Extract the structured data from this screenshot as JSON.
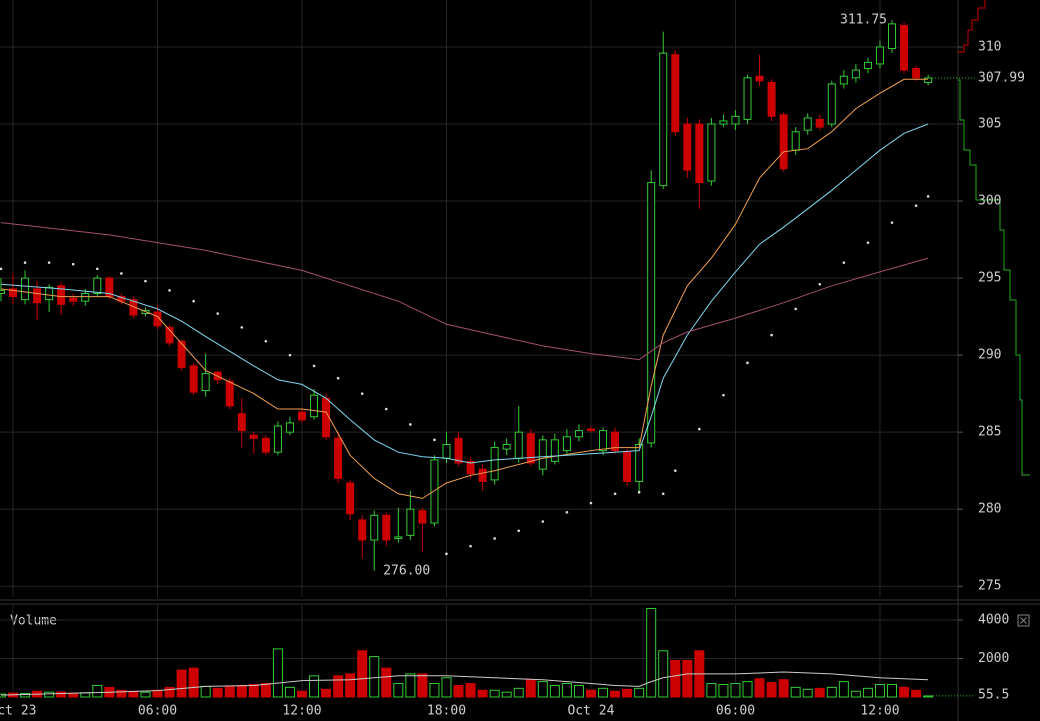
{
  "chart_data": [
    {
      "type": "candlestick",
      "x": [
        -0.5,
        0,
        0.5,
        1,
        1.5,
        2,
        2.5,
        3,
        3.5,
        4,
        4.5,
        5,
        5.5,
        6,
        6.5,
        7,
        7.5,
        8,
        8.5,
        9,
        9.5,
        10,
        10.5,
        11,
        11.5,
        12,
        12.5,
        13,
        13.5,
        14,
        14.5,
        15,
        15.5,
        16,
        16.5,
        17,
        17.5,
        18,
        18.5,
        19,
        19.5,
        20,
        20.5,
        21,
        21.5,
        22,
        22.5,
        23,
        23.5,
        24,
        24.5,
        25,
        25.5,
        26,
        26.5,
        27,
        27.5,
        28,
        28.5,
        29,
        29.5,
        30,
        30.5,
        31,
        31.5,
        32,
        32.5,
        33,
        33.5,
        34,
        34.5,
        35,
        35.5,
        36,
        36.5,
        37,
        37.5,
        38
      ],
      "open": [
        294.0,
        294.3,
        293.6,
        294.3,
        293.6,
        294.5,
        293.7,
        293.5,
        294.0,
        295.0,
        293.8,
        293.6,
        292.7,
        292.8,
        291.8,
        290.9,
        289.3,
        287.7,
        288.9,
        288.3,
        286.2,
        284.8,
        284.6,
        283.7,
        285.0,
        286.3,
        286.0,
        287.2,
        284.6,
        281.7,
        279.3,
        278.0,
        279.6,
        278.1,
        278.3,
        279.9,
        279.1,
        283.3,
        284.6,
        283.1,
        282.6,
        281.9,
        283.9,
        283.3,
        284.9,
        282.6,
        283.1,
        283.8,
        284.7,
        285.2,
        283.8,
        285.0,
        283.7,
        281.8,
        284.3,
        301.0,
        309.5,
        305.0,
        305.0,
        301.3,
        305.0,
        305.0,
        305.3,
        308.1,
        307.7,
        305.6,
        303.3,
        304.6,
        305.3,
        305.0,
        307.6,
        308.0,
        308.6,
        308.9,
        309.9,
        311.4,
        308.6,
        307.7
      ],
      "high": [
        295.0,
        295.3,
        295.5,
        294.8,
        294.6,
        294.7,
        294.0,
        294.3,
        295.2,
        295.1,
        294.0,
        293.8,
        293.1,
        293.2,
        292.0,
        291.0,
        289.5,
        290.1,
        289.0,
        288.5,
        287.2,
        285.0,
        284.8,
        285.7,
        286.0,
        286.6,
        287.8,
        287.5,
        285.0,
        281.9,
        279.6,
        279.9,
        279.8,
        280.1,
        281.2,
        280.1,
        283.5,
        285.0,
        285.0,
        283.4,
        282.9,
        284.4,
        284.6,
        286.7,
        285.2,
        284.8,
        284.9,
        285.2,
        285.5,
        285.4,
        285.3,
        285.3,
        283.9,
        284.6,
        302.0,
        311.0,
        309.8,
        305.4,
        305.3,
        305.4,
        305.6,
        305.9,
        308.2,
        309.5,
        307.9,
        305.8,
        304.8,
        305.7,
        305.6,
        307.8,
        308.5,
        308.9,
        309.3,
        310.4,
        311.75,
        311.6,
        308.8,
        308.2
      ],
      "low": [
        293.5,
        293.3,
        293.3,
        292.3,
        292.8,
        292.6,
        293.2,
        293.2,
        293.8,
        293.6,
        293.3,
        292.4,
        292.5,
        291.7,
        290.6,
        289.0,
        287.4,
        287.3,
        288.1,
        286.5,
        284.0,
        283.6,
        283.5,
        283.5,
        284.8,
        285.6,
        285.8,
        284.5,
        281.7,
        279.3,
        276.8,
        276.0,
        277.6,
        277.8,
        278.0,
        277.2,
        278.9,
        283.0,
        282.8,
        282.0,
        281.2,
        281.6,
        283.5,
        283.0,
        282.8,
        282.2,
        282.9,
        283.6,
        284.4,
        285.0,
        283.5,
        283.6,
        281.5,
        281.0,
        284.0,
        300.8,
        304.2,
        301.5,
        299.5,
        301.0,
        304.8,
        304.6,
        305.0,
        307.5,
        305.2,
        301.9,
        303.0,
        304.3,
        304.6,
        304.8,
        307.3,
        307.7,
        308.3,
        308.6,
        309.6,
        308.3,
        307.8,
        307.5
      ],
      "close": [
        294.2,
        293.8,
        295.0,
        293.4,
        294.4,
        293.3,
        293.5,
        294.0,
        295.0,
        293.8,
        293.5,
        292.6,
        292.9,
        291.9,
        290.8,
        289.2,
        287.6,
        288.8,
        288.4,
        286.7,
        285.1,
        284.6,
        283.7,
        285.4,
        285.6,
        285.8,
        287.4,
        284.7,
        282.0,
        279.7,
        278.0,
        279.6,
        278.0,
        278.2,
        280.0,
        279.1,
        283.2,
        284.2,
        283.0,
        282.3,
        281.8,
        284.0,
        284.2,
        285.0,
        283.0,
        284.5,
        284.5,
        284.7,
        285.1,
        285.1,
        285.1,
        283.8,
        281.8,
        284.2,
        301.2,
        309.6,
        304.5,
        302.0,
        301.2,
        305.0,
        305.2,
        305.5,
        308.0,
        307.8,
        305.5,
        302.1,
        304.5,
        305.4,
        304.8,
        307.6,
        308.1,
        308.5,
        309.0,
        310.0,
        311.5,
        308.5,
        308.0,
        307.99
      ],
      "up_color": "#33cc33",
      "down_color": "#cc0000",
      "xlim": [
        -0.54,
        39.24
      ],
      "ylim": [
        274.3,
        313.05
      ],
      "yticks": [
        275,
        280,
        285,
        290,
        295,
        300,
        305,
        310
      ],
      "grid": true,
      "overlays": [
        {
          "type": "line",
          "color": "#f0a050",
          "x": [
            -0.5,
            2,
            4,
            6,
            8,
            10,
            11,
            12,
            13,
            14,
            15,
            16,
            17,
            18,
            19,
            20,
            22,
            24,
            25,
            26,
            26.5,
            27,
            28,
            29,
            30,
            31,
            32,
            33,
            34,
            35,
            36,
            37,
            38
          ],
          "values": [
            294.3,
            293.8,
            293.8,
            292.5,
            289,
            287.5,
            286.5,
            286.5,
            286.3,
            283.5,
            282,
            281,
            280.7,
            281.7,
            282.2,
            282.5,
            283.3,
            283.8,
            284,
            284,
            288,
            291.3,
            294.5,
            296.3,
            298.5,
            301.5,
            303.2,
            303.4,
            304.5,
            306,
            307,
            307.9,
            307.9
          ]
        },
        {
          "type": "line",
          "color": "#80d8f0",
          "x": [
            -0.5,
            2,
            4,
            6,
            7,
            8,
            10,
            11,
            12,
            13,
            14,
            15,
            16,
            17,
            18,
            19,
            20,
            22,
            24,
            25,
            26,
            26.5,
            27,
            28,
            29,
            30,
            31,
            32,
            33,
            34,
            35,
            36,
            37,
            38
          ],
          "values": [
            294.6,
            294.3,
            294,
            293,
            292.2,
            291.2,
            289.3,
            288.4,
            288.1,
            287.2,
            285.8,
            284.5,
            283.7,
            283.4,
            283.3,
            283,
            283.2,
            283.4,
            283.6,
            283.7,
            283.8,
            286,
            288.5,
            291.3,
            293.5,
            295.4,
            297.2,
            298.3,
            299.5,
            300.7,
            302,
            303.3,
            304.4,
            305
          ]
        },
        {
          "type": "line",
          "color": "#a05070",
          "x": [
            -0.5,
            4,
            8,
            12,
            16,
            18,
            20,
            22,
            24,
            26,
            27,
            28,
            30,
            32,
            34,
            36,
            38
          ],
          "values": [
            298.6,
            297.8,
            296.8,
            295.5,
            293.5,
            292,
            291.3,
            290.6,
            290.1,
            289.7,
            290.8,
            291.5,
            292.4,
            293.4,
            294.5,
            295.4,
            296.3
          ]
        },
        {
          "type": "scatter",
          "color": "#dddddd",
          "x": [
            -0.5,
            0.5,
            1.5,
            2.5,
            3.5,
            4.5,
            5.5,
            6.5,
            7.5,
            8.5,
            9.5,
            10.5,
            11.5,
            12.5,
            13.5,
            14.5,
            15.5,
            16.5,
            17.5,
            18,
            19,
            20,
            21,
            22,
            23,
            24,
            25,
            26,
            27,
            27.5,
            28.5,
            29.5,
            30.5,
            31.5,
            32.5,
            33.5,
            34.5,
            35.5,
            36.5,
            37.5,
            38
          ],
          "values": [
            295.6,
            296.0,
            296.0,
            295.9,
            295.6,
            295.3,
            294.8,
            294.2,
            293.5,
            292.7,
            291.8,
            290.9,
            290.0,
            289.3,
            288.5,
            287.5,
            286.5,
            285.5,
            284.5,
            277.1,
            277.6,
            278.1,
            278.6,
            279.2,
            279.8,
            280.4,
            281.0,
            281.1,
            281.0,
            282.5,
            285.2,
            287.4,
            289.5,
            291.3,
            293.0,
            294.6,
            296.0,
            297.3,
            298.6,
            299.7,
            300.3
          ]
        }
      ],
      "annotations": [
        {
          "label": "311.75",
          "x": 36.5,
          "value": 311.75
        },
        {
          "label": "276.00",
          "x": 15,
          "value": 276
        }
      ]
    },
    {
      "type": "bar",
      "title": "Volume",
      "values": [
        150,
        200,
        180,
        300,
        250,
        260,
        200,
        220,
        600,
        500,
        350,
        300,
        250,
        350,
        500,
        1400,
        1500,
        550,
        450,
        550,
        600,
        650,
        700,
        2500,
        500,
        300,
        1100,
        400,
        1100,
        1200,
        2400,
        2100,
        1500,
        700,
        1200,
        1200,
        700,
        1000,
        600,
        700,
        350,
        350,
        250,
        450,
        900,
        800,
        600,
        700,
        600,
        350,
        450,
        300,
        400,
        450,
        4600,
        2400,
        1900,
        1900,
        2400,
        700,
        650,
        700,
        800,
        950,
        750,
        900,
        500,
        400,
        450,
        500,
        800,
        300,
        450,
        650,
        650,
        500,
        350,
        55.5
      ],
      "ylim": [
        0,
        4780
      ],
      "yticks": [
        2000,
        4000
      ],
      "xticks": [
        {
          "value": 0,
          "label": "Oct 23"
        },
        {
          "value": 6,
          "label": "06:00"
        },
        {
          "value": 12,
          "label": "12:00"
        },
        {
          "value": 18,
          "label": "18:00"
        },
        {
          "value": 24,
          "label": "Oct 24"
        },
        {
          "value": 30,
          "label": "06:00"
        },
        {
          "value": 36,
          "label": "12:00"
        }
      ],
      "ma": {
        "color": "#cccccc",
        "x": [
          -0.5,
          2,
          4,
          6,
          8,
          10,
          12,
          14,
          16,
          18,
          20,
          22,
          24,
          25,
          26,
          26.5,
          27,
          28,
          30,
          32,
          34,
          36,
          38
        ],
        "values": [
          100,
          180,
          250,
          330,
          550,
          600,
          850,
          900,
          1100,
          1100,
          1000,
          900,
          700,
          600,
          550,
          800,
          1000,
          1200,
          1200,
          1300,
          1200,
          1000,
          900
        ]
      }
    }
  ]
}
